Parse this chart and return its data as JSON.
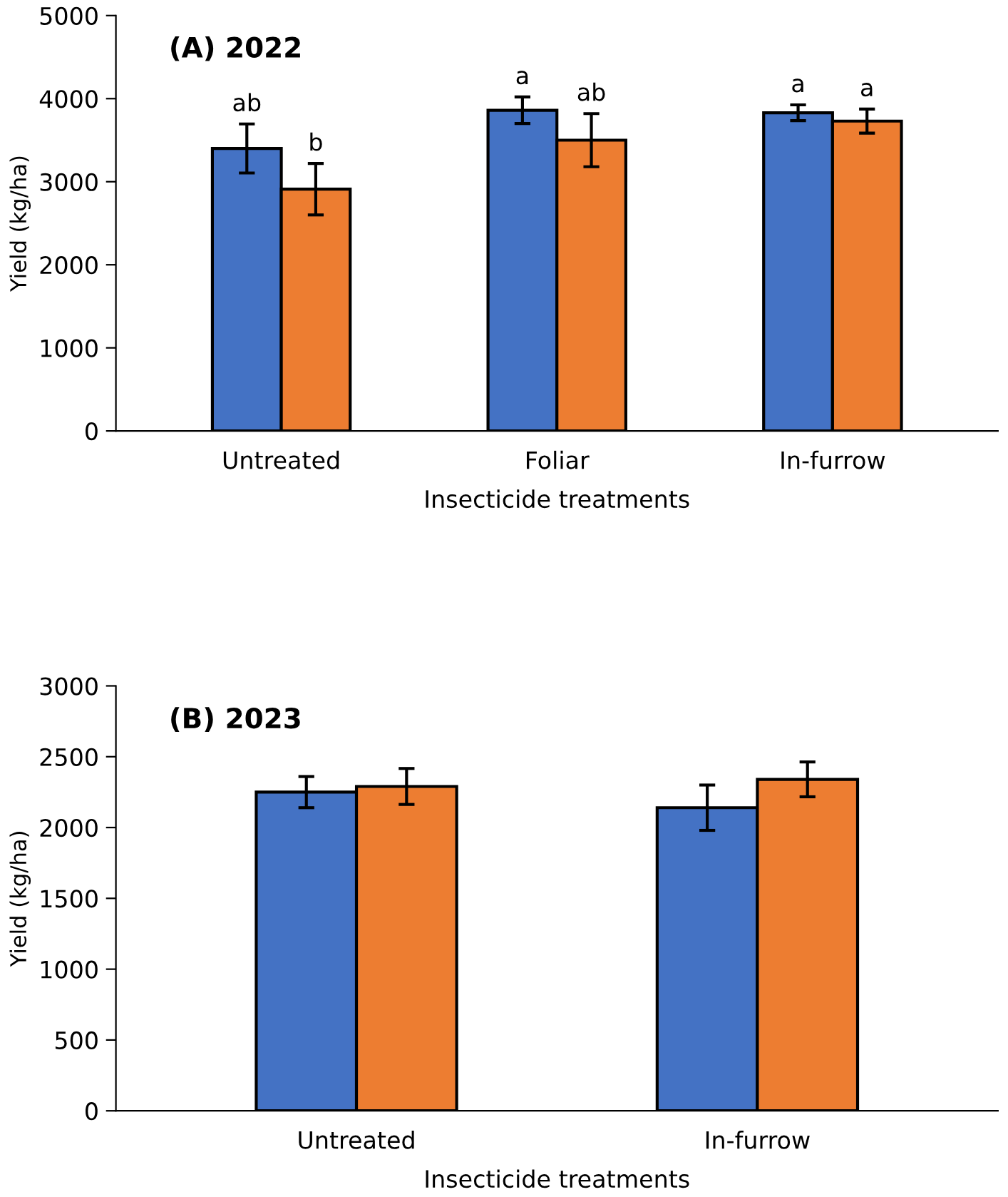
{
  "chart_data": [
    {
      "type": "bar",
      "title": "(A) 2022",
      "xlabel": "Insecticide treatments",
      "ylabel": "Yield (kg/ha)",
      "categories": [
        "Untreated",
        "Foliar",
        "In-furrow"
      ],
      "series": [
        {
          "color": "#4472c4",
          "values": [
            3400,
            3860,
            3830
          ],
          "errors": [
            295,
            160,
            95
          ]
        },
        {
          "color": "#ed7d31",
          "values": [
            2910,
            3500,
            3730
          ],
          "errors": [
            310,
            320,
            145
          ]
        }
      ],
      "annotations": [
        "ab",
        "b",
        "a",
        "ab",
        "a",
        "a"
      ],
      "ylim": [
        0,
        5000
      ],
      "yticks": [
        0,
        1000,
        2000,
        3000,
        4000,
        5000
      ],
      "grid": false
    },
    {
      "type": "bar",
      "title": "(B) 2023",
      "xlabel": "Insecticide treatments",
      "ylabel": "Yield (kg/ha)",
      "categories": [
        "Untreated",
        "In-furrow"
      ],
      "series": [
        {
          "color": "#4472c4",
          "values": [
            2250,
            2140
          ],
          "errors": [
            110,
            160
          ]
        },
        {
          "color": "#ed7d31",
          "values": [
            2290,
            2340
          ],
          "errors": [
            127,
            123
          ]
        }
      ],
      "ylim": [
        0,
        3000
      ],
      "yticks": [
        0,
        500,
        1000,
        1500,
        2000,
        2500,
        3000
      ],
      "grid": false
    }
  ]
}
